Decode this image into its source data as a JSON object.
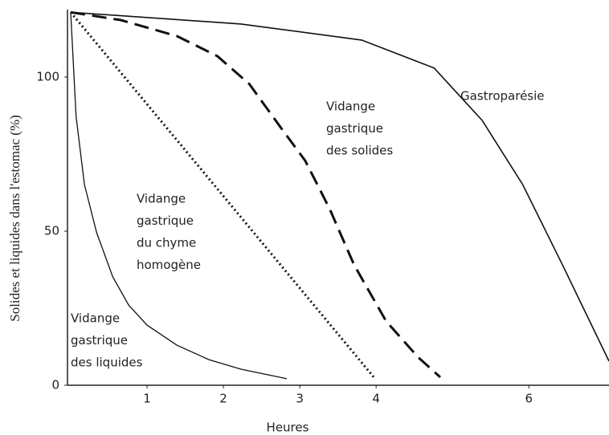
{
  "chart_data": {
    "type": "line",
    "x_label": "Heures",
    "y_label": "Solides et liquides dans l'estomac (%)",
    "xlim": [
      0,
      7.05
    ],
    "xticks": [
      1,
      2,
      3,
      4,
      6
    ],
    "ylim": [
      0,
      122
    ],
    "yticks": [
      0,
      50,
      100
    ],
    "series": [
      {
        "color": "#111",
        "style": "solid",
        "width": 1.3,
        "x": [
          0,
          0.07,
          0.18,
          0.34,
          0.55,
          0.76,
          1.0,
          1.39,
          1.81,
          2.23,
          2.83
        ],
        "values": [
          121,
          87.2,
          65.1,
          49.5,
          35.2,
          26.0,
          19.5,
          13.0,
          8.3,
          5.2,
          2.1
        ]
      },
      {
        "color": "#111",
        "style": "dotted",
        "width": 3,
        "x": [
          0,
          3.99
        ],
        "values": [
          121,
          2
        ]
      },
      {
        "color": "#111",
        "style": "dashed",
        "width": 3,
        "x": [
          0,
          0.65,
          1.39,
          1.92,
          2.34,
          2.76,
          3.07,
          3.39,
          3.71,
          4.13,
          4.55,
          4.84
        ],
        "values": [
          121,
          118.5,
          113.3,
          106.8,
          97.7,
          83.3,
          72.9,
          57.3,
          39.1,
          20.8,
          9.1,
          2.6
        ]
      },
      {
        "color": "#111",
        "style": "solid",
        "width": 1.6,
        "x": [
          0,
          2.23,
          3.81,
          4.76,
          5.39,
          5.92,
          6.44,
          7.05
        ],
        "values": [
          121,
          117.2,
          112.0,
          102.9,
          85.9,
          65.1,
          39.1,
          7.8
        ]
      }
    ],
    "annotations": [
      [
        "Vidange",
        "gastrique",
        "des liquides"
      ],
      [
        "Vidange",
        "gastrique",
        "du chyme",
        "homogène"
      ],
      [
        "Vidange",
        "gastrique",
        "des solides"
      ],
      [
        "Gastroparésie"
      ]
    ]
  }
}
